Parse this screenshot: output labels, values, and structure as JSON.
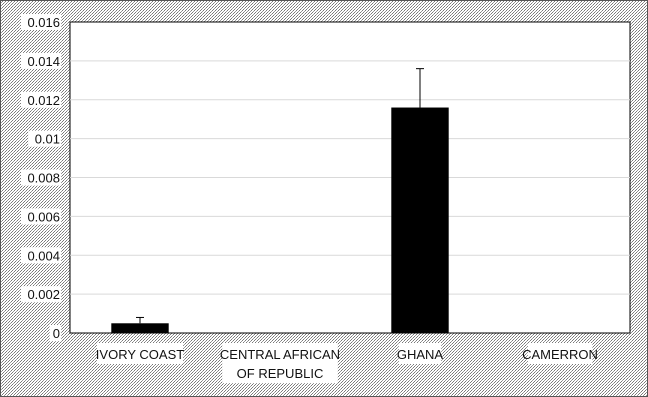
{
  "chart_data": {
    "type": "bar",
    "categories": [
      "IVORY COAST",
      "CENTRAL AFRICAN OF REPUBLIC",
      "GHANA",
      "CAMERRON"
    ],
    "category_lines": [
      [
        "IVORY COAST"
      ],
      [
        "CENTRAL AFRICAN",
        "OF REPUBLIC"
      ],
      [
        "GHANA"
      ],
      [
        "CAMERRON"
      ]
    ],
    "values": [
      0.0005,
      0,
      0.0116,
      0
    ],
    "error_plus": [
      0.0003,
      0,
      0.002,
      0
    ],
    "title": "",
    "xlabel": "",
    "ylabel": "",
    "ylim": [
      0,
      0.016
    ],
    "yticks": [
      "0",
      "0.002",
      "0.004",
      "0.006",
      "0.008",
      "0.01",
      "0.012",
      "0.014",
      "0.016"
    ],
    "grid": true,
    "legend": "none",
    "colors": {
      "bar": "#000000",
      "grid": "#d9d9d9",
      "background_pattern": "#8c8c8c",
      "plot_background": "#ffffff"
    }
  }
}
